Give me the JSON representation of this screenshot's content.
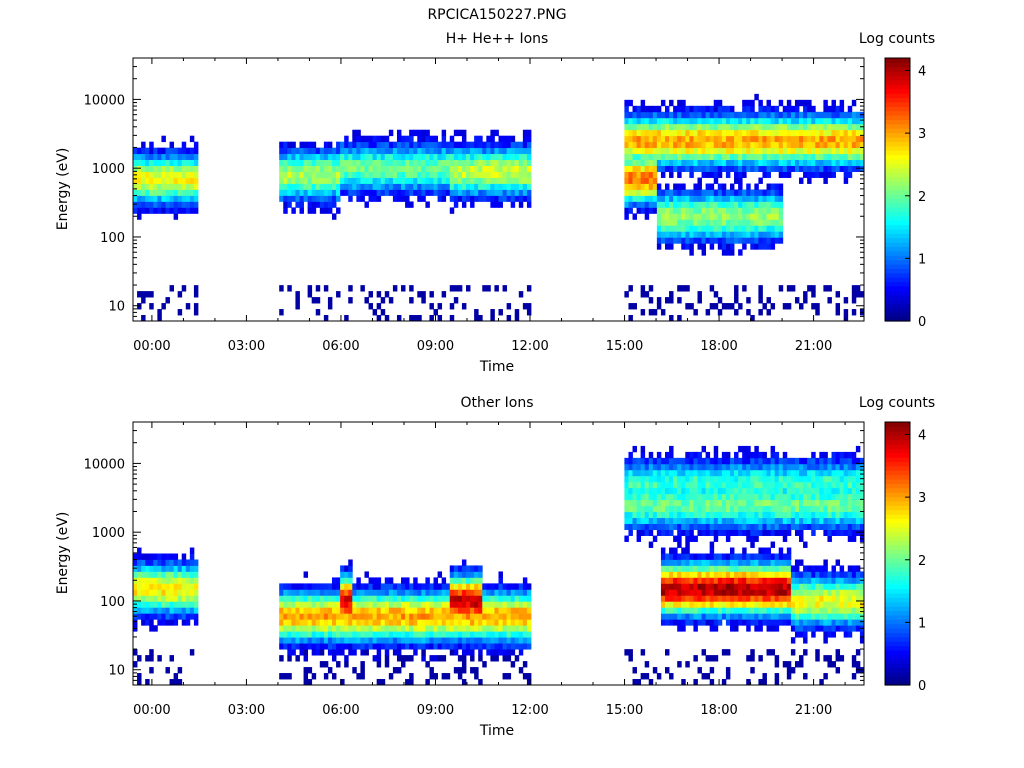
{
  "figure_title": "RPCICA150227.PNG",
  "colors": {
    "colormap": [
      "#000080",
      "#0000ff",
      "#0080ff",
      "#00ffff",
      "#80ff80",
      "#ffff00",
      "#ff8000",
      "#ff0000",
      "#800000"
    ]
  },
  "chart_data": [
    {
      "type": "heatmap",
      "title": "H+ He++ Ions",
      "xlabel": "Time",
      "ylabel": "Energy (eV)",
      "x_tick_labels": [
        "00:00",
        "03:00",
        "06:00",
        "09:00",
        "12:00",
        "15:00",
        "18:00",
        "21:00"
      ],
      "x_ticks_hours": [
        0,
        3,
        6,
        9,
        12,
        15,
        18,
        21
      ],
      "xlim_hours": [
        -0.6,
        22.6
      ],
      "y_scale": "log",
      "y_tick_labels": [
        "10",
        "100",
        "1000",
        "10000"
      ],
      "y_ticks": [
        10,
        100,
        1000,
        10000
      ],
      "ylim": [
        6,
        40000
      ],
      "data_gaps_hours": [
        [
          1.5,
          4.0
        ],
        [
          12.0,
          15.0
        ]
      ],
      "colorbar": {
        "label": "Log counts",
        "ticks": [
          "0",
          "1",
          "2",
          "3",
          "4"
        ],
        "range": [
          0,
          4.2
        ]
      },
      "bands": [
        {
          "t": [
            -0.6,
            1.5
          ],
          "e_center": 700,
          "level": 2.6
        },
        {
          "t": [
            4.0,
            6.0
          ],
          "e_center": 800,
          "level": 2.3
        },
        {
          "t": [
            6.0,
            9.5
          ],
          "e_center": 1000,
          "level": 2.0
        },
        {
          "t": [
            9.5,
            12.0
          ],
          "e_center": 900,
          "level": 2.4
        },
        {
          "t": [
            15.0,
            16.0
          ],
          "e_center": 700,
          "level": 3.2
        },
        {
          "t": [
            15.0,
            22.6
          ],
          "e_center": 2500,
          "level": 3.0
        },
        {
          "t": [
            16.0,
            20.0
          ],
          "e_center": 200,
          "level": 2.2
        }
      ]
    },
    {
      "type": "heatmap",
      "title": "Other Ions",
      "xlabel": "Time",
      "ylabel": "Energy (eV)",
      "x_tick_labels": [
        "00:00",
        "03:00",
        "06:00",
        "09:00",
        "12:00",
        "15:00",
        "18:00",
        "21:00"
      ],
      "x_ticks_hours": [
        0,
        3,
        6,
        9,
        12,
        15,
        18,
        21
      ],
      "xlim_hours": [
        -0.6,
        22.6
      ],
      "y_scale": "log",
      "y_tick_labels": [
        "10",
        "100",
        "1000",
        "10000"
      ],
      "y_ticks": [
        10,
        100,
        1000,
        10000
      ],
      "ylim": [
        6,
        40000
      ],
      "data_gaps_hours": [
        [
          1.5,
          4.0
        ],
        [
          12.0,
          15.0
        ]
      ],
      "colorbar": {
        "label": "Log counts",
        "ticks": [
          "0",
          "1",
          "2",
          "3",
          "4"
        ],
        "range": [
          0,
          4.2
        ]
      },
      "bands": [
        {
          "t": [
            -0.6,
            1.5
          ],
          "e_center": 150,
          "level": 2.7
        },
        {
          "t": [
            4.0,
            12.0
          ],
          "e_center": 60,
          "level": 3.0
        },
        {
          "t": [
            9.5,
            10.5
          ],
          "e_center": 100,
          "level": 3.9
        },
        {
          "t": [
            6.0,
            6.3
          ],
          "e_center": 100,
          "level": 3.8
        },
        {
          "t": [
            15.0,
            22.6
          ],
          "e_center": 2500,
          "level": 2.0
        },
        {
          "t": [
            15.0,
            22.6
          ],
          "e_center": 5000,
          "level": 1.8
        },
        {
          "t": [
            16.2,
            20.3
          ],
          "e_center": 150,
          "level": 4.0
        },
        {
          "t": [
            20.3,
            22.6
          ],
          "e_center": 100,
          "level": 2.6
        }
      ]
    }
  ]
}
